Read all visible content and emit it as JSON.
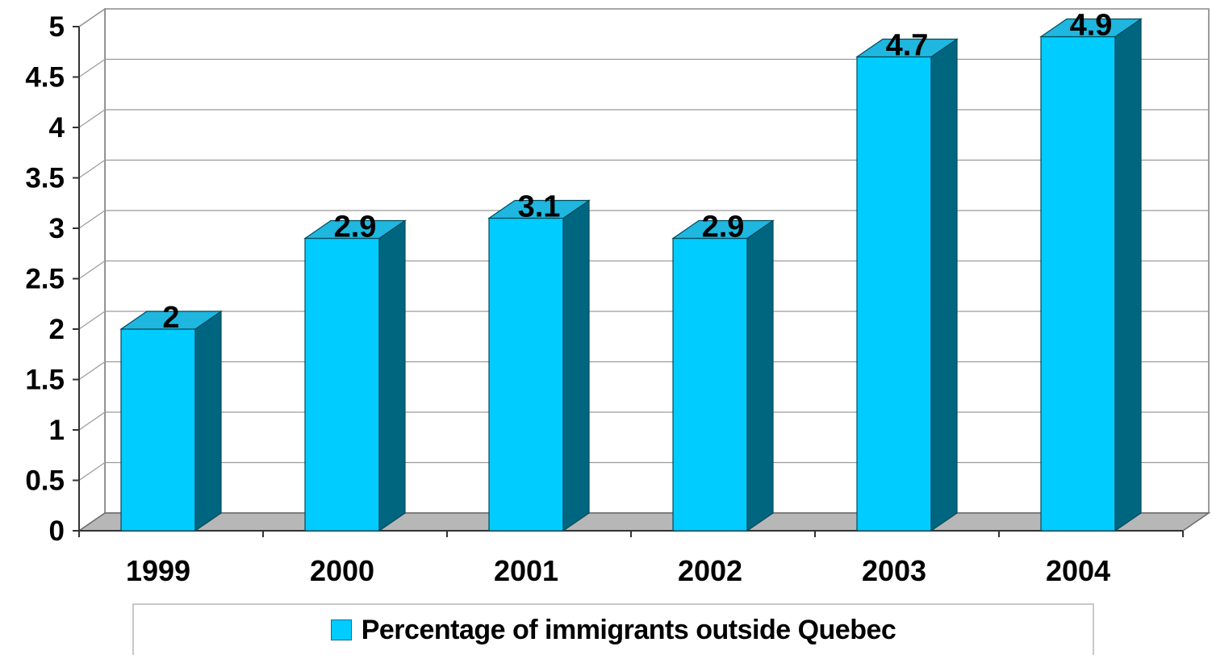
{
  "chart_data": {
    "type": "bar",
    "categories": [
      "1999",
      "2000",
      "2001",
      "2002",
      "2003",
      "2004"
    ],
    "series": [
      {
        "name": "Percentage of immigrants outside Quebec",
        "values": [
          2,
          2.9,
          3.1,
          2.9,
          4.7,
          4.9
        ],
        "data_labels": [
          "2",
          "2.9",
          "3.1",
          "2.9",
          "4.7",
          "4.9"
        ]
      }
    ],
    "yticks": [
      "0",
      "0.5",
      "1",
      "1.5",
      "2",
      "2.5",
      "3",
      "3.5",
      "4",
      "4.5",
      "5"
    ],
    "ylim": [
      0,
      5
    ],
    "grid": true,
    "legend_position": "bottom",
    "colors": {
      "bar_front": "#00ccff",
      "bar_top": "#1fb7df",
      "bar_side": "#006680",
      "bar_edge": "#004a5c",
      "floor": "#b7b7b7",
      "grid": "#9a9a9a"
    }
  }
}
